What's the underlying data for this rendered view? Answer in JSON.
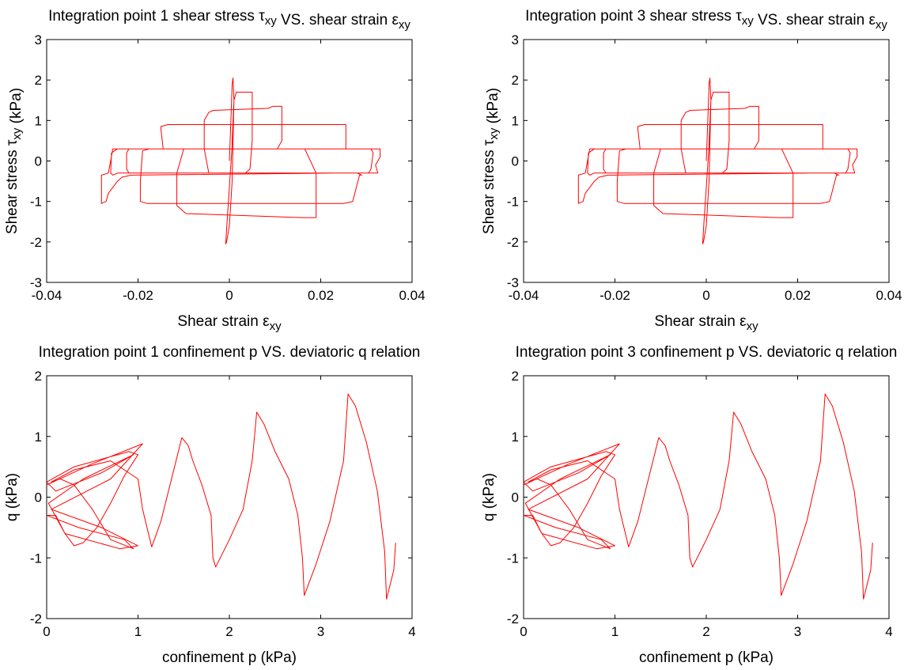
{
  "chart_data": [
    {
      "type": "line",
      "title": "Integration point 1 shear stress τxy VS. shear strain εxy",
      "xlabel": "Shear strain εxy",
      "ylabel": "Shear stress τxy (kPa)",
      "xlim": [
        -0.04,
        0.04
      ],
      "ylim": [
        -3,
        3
      ],
      "xticks": [
        -0.04,
        -0.02,
        0,
        0.02,
        0.04
      ],
      "xticklabels": [
        "-0.04",
        "-0.02",
        "0",
        "0.02",
        "0.04"
      ],
      "yticks": [
        3,
        2,
        1,
        0,
        -1,
        -2,
        -3
      ],
      "yticklabels": [
        "3",
        "2",
        "1",
        "0",
        "-1",
        "-2",
        "-3"
      ],
      "grid": false,
      "series": [
        {
          "color": "#ff0000",
          "x": [
            0,
            0.0004,
            0.0006,
            0.0008,
            0.001,
            0.0006,
            0,
            -0.0006,
            -0.0008,
            -0.0005,
            0.0005,
            0.001,
            0.0015,
            0.005,
            0.005,
            0.0045,
            0.0035,
            -0.0045,
            -0.0055,
            -0.0055,
            -0.0045,
            -0.0035,
            0.0085,
            0.0095,
            0.0115,
            0.0115,
            0.0105,
            -0.01,
            -0.0115,
            -0.0115,
            -0.0095,
            0.016,
            0.018,
            0.019,
            0.019,
            0.0165,
            -0.0145,
            -0.015,
            -0.015,
            -0.0135,
            0.02,
            0.0225,
            0.0255,
            0.0255,
            0.022,
            -0.0175,
            -0.019,
            -0.0195,
            -0.0195,
            -0.018,
            0.025,
            0.027,
            0.0285,
            0.029,
            0.028,
            0.023,
            -0.0215,
            -0.0235,
            -0.0245,
            -0.0265,
            -0.027,
            -0.028,
            -0.028,
            -0.0265,
            -0.0255,
            0.025,
            0.031,
            0.0325,
            0.033,
            0.033,
            0.032,
            0.0325,
            0.031,
            -0.0245,
            -0.0255,
            -0.026,
            -0.0258,
            -0.0245,
            -0.022,
            0.029,
            0.031,
            0.0315,
            0.031,
            0.0305,
            -0.02,
            -0.022,
            -0.0225,
            -0.0225,
            -0.022,
            0.025
          ],
          "y": [
            0,
            1.2,
            1.9,
            2.05,
            1.5,
            -0.5,
            -1.6,
            -2.0,
            -2.05,
            -1.5,
            0.2,
            1.5,
            1.7,
            1.7,
            0.5,
            -0.2,
            -0.3,
            -0.3,
            0.3,
            1.0,
            1.2,
            1.25,
            1.3,
            1.35,
            1.35,
            0.5,
            0.3,
            0.3,
            -0.3,
            -1.1,
            -1.3,
            -1.4,
            -1.4,
            -1.4,
            -0.3,
            0.3,
            0.3,
            0.8,
            0.85,
            0.9,
            0.9,
            0.9,
            0.9,
            0.3,
            0.3,
            0.3,
            0.25,
            -0.5,
            -1.0,
            -1.05,
            -1.05,
            -1.0,
            -0.35,
            -0.35,
            -0.3,
            -0.3,
            -0.35,
            -0.4,
            -0.5,
            -0.8,
            -1.0,
            -1.05,
            -0.35,
            -0.3,
            0.3,
            0.3,
            0.3,
            0.3,
            0.3,
            0.1,
            -0.1,
            -0.3,
            -0.3,
            -0.3,
            -0.35,
            -0.3,
            0.2,
            0.3,
            0.3,
            0.3,
            0.3,
            0.2,
            -0.2,
            -0.3,
            -0.3,
            -0.3,
            -0.2,
            0.2,
            0.3,
            0.3
          ]
        }
      ]
    },
    {
      "type": "line",
      "title": "Integration point 3 shear stress τxy VS. shear strain εxy",
      "xlabel": "Shear strain εxy",
      "ylabel": "Shear stress τxy (kPa)",
      "xlim": [
        -0.04,
        0.04
      ],
      "ylim": [
        -3,
        3
      ],
      "xticks": [
        -0.04,
        -0.02,
        0,
        0.02,
        0.04
      ],
      "xticklabels": [
        "-0.04",
        "-0.02",
        "0",
        "0.02",
        "0.04"
      ],
      "yticks": [
        3,
        2,
        1,
        0,
        -1,
        -2,
        -3
      ],
      "yticklabels": [
        "3",
        "2",
        "1",
        "0",
        "-1",
        "-2",
        "-3"
      ],
      "grid": false,
      "series": [
        {
          "color": "#ff0000",
          "x": [
            0,
            0.0004,
            0.0006,
            0.0008,
            0.001,
            0.0006,
            0,
            -0.0006,
            -0.0008,
            -0.0005,
            0.0005,
            0.001,
            0.0015,
            0.005,
            0.005,
            0.0045,
            0.0035,
            -0.0045,
            -0.0055,
            -0.0055,
            -0.0045,
            -0.0035,
            0.0085,
            0.0095,
            0.0115,
            0.0115,
            0.0105,
            -0.01,
            -0.0115,
            -0.0115,
            -0.0095,
            0.016,
            0.018,
            0.019,
            0.019,
            0.0165,
            -0.0145,
            -0.015,
            -0.015,
            -0.0135,
            0.02,
            0.0225,
            0.0255,
            0.0255,
            0.022,
            -0.0175,
            -0.019,
            -0.0195,
            -0.0195,
            -0.018,
            0.025,
            0.027,
            0.0285,
            0.029,
            0.028,
            0.023,
            -0.0215,
            -0.0235,
            -0.0245,
            -0.0265,
            -0.027,
            -0.028,
            -0.028,
            -0.0265,
            -0.0255,
            0.025,
            0.031,
            0.0325,
            0.033,
            0.033,
            0.032,
            0.0325,
            0.031,
            -0.0245,
            -0.0255,
            -0.026,
            -0.0258,
            -0.0245,
            -0.022,
            0.029,
            0.031,
            0.0315,
            0.031,
            0.0305,
            -0.02,
            -0.022,
            -0.0225,
            -0.0225,
            -0.022,
            0.025
          ],
          "y": [
            0,
            1.2,
            1.9,
            2.05,
            1.5,
            -0.5,
            -1.6,
            -2.0,
            -2.05,
            -1.5,
            0.2,
            1.5,
            1.7,
            1.7,
            0.5,
            -0.2,
            -0.3,
            -0.3,
            0.3,
            1.0,
            1.2,
            1.25,
            1.3,
            1.35,
            1.35,
            0.5,
            0.3,
            0.3,
            -0.3,
            -1.1,
            -1.3,
            -1.4,
            -1.4,
            -1.4,
            -0.3,
            0.3,
            0.3,
            0.8,
            0.85,
            0.9,
            0.9,
            0.9,
            0.9,
            0.3,
            0.3,
            0.3,
            0.25,
            -0.5,
            -1.0,
            -1.05,
            -1.05,
            -1.0,
            -0.35,
            -0.35,
            -0.3,
            -0.3,
            -0.35,
            -0.4,
            -0.5,
            -0.8,
            -1.0,
            -1.05,
            -0.35,
            -0.3,
            0.3,
            0.3,
            0.3,
            0.3,
            0.3,
            0.1,
            -0.1,
            -0.3,
            -0.3,
            -0.3,
            -0.35,
            -0.3,
            0.2,
            0.3,
            0.3,
            0.3,
            0.3,
            0.2,
            -0.2,
            -0.3,
            -0.3,
            -0.3,
            -0.2,
            0.2,
            0.3,
            0.3
          ]
        }
      ]
    },
    {
      "type": "line",
      "title": "Integration point 1 confinement p VS. deviatoric q relation",
      "xlabel": "confinement p (kPa)",
      "ylabel": "q (kPa)",
      "xlim": [
        0,
        4
      ],
      "ylim": [
        -2,
        2
      ],
      "xticks": [
        0,
        1,
        2,
        3,
        4
      ],
      "xticklabels": [
        "0",
        "1",
        "2",
        "3",
        "4"
      ],
      "yticks": [
        2,
        1,
        0,
        -1,
        -2
      ],
      "yticklabels": [
        "2",
        "1",
        "0",
        "-1",
        "-2"
      ],
      "grid": false,
      "series": [
        {
          "color": "#ff0000",
          "x": [
            0,
            0.5,
            1.05,
            0.7,
            0.05,
            0.6,
            1.0,
            0.8,
            0.2,
            0.02,
            0.4,
            0.95,
            0.6,
            0.1,
            0,
            0.3,
            0.9,
            1.0,
            0.85,
            0.7,
            0.55,
            0.4,
            0.3,
            0.2,
            0.1,
            0,
            0.35,
            0.85,
            0.95,
            0.7,
            0.5,
            0.3,
            0.15,
            0.05,
            0.3,
            0.7,
            1.0,
            1.05,
            1.15,
            1.25,
            1.48,
            1.55,
            1.6,
            1.7,
            1.8,
            1.82,
            1.85,
            2.0,
            2.15,
            2.25,
            2.3,
            2.38,
            2.5,
            2.65,
            2.75,
            2.8,
            2.82,
            2.95,
            3.1,
            3.25,
            3.3,
            3.38,
            3.5,
            3.62,
            3.7,
            3.72,
            3.8,
            3.82
          ],
          "y": [
            0.2,
            0.55,
            0.88,
            0.3,
            -0.2,
            -0.5,
            -0.8,
            -0.85,
            -0.6,
            -0.1,
            0.3,
            0.7,
            0.4,
            0.1,
            0.25,
            0.5,
            0.75,
            0.7,
            0.35,
            -0.1,
            -0.5,
            -0.75,
            -0.8,
            -0.6,
            -0.3,
            -0.3,
            -0.5,
            -0.7,
            -0.85,
            -0.7,
            -0.2,
            0.2,
            0.3,
            0.25,
            0.45,
            0.6,
            0.3,
            -0.2,
            -0.82,
            -0.4,
            0.98,
            0.85,
            0.6,
            0.2,
            -0.3,
            -1.0,
            -1.15,
            -0.7,
            -0.2,
            0.6,
            1.4,
            1.2,
            0.75,
            0.3,
            -0.3,
            -1.0,
            -1.62,
            -1.1,
            -0.4,
            0.6,
            1.7,
            1.5,
            0.9,
            0.1,
            -0.9,
            -1.68,
            -1.2,
            -0.75
          ]
        }
      ]
    },
    {
      "type": "line",
      "title": "Integration point 3 confinement p VS. deviatoric q relation",
      "xlabel": "confinement p (kPa)",
      "ylabel": "q (kPa)",
      "xlim": [
        0,
        4
      ],
      "ylim": [
        -2,
        2
      ],
      "xticks": [
        0,
        1,
        2,
        3,
        4
      ],
      "xticklabels": [
        "0",
        "1",
        "2",
        "3",
        "4"
      ],
      "yticks": [
        2,
        1,
        0,
        -1,
        -2
      ],
      "yticklabels": [
        "2",
        "1",
        "0",
        "-1",
        "-2"
      ],
      "grid": false,
      "series": [
        {
          "color": "#ff0000",
          "x": [
            0,
            0.5,
            1.05,
            0.7,
            0.05,
            0.6,
            1.0,
            0.8,
            0.2,
            0.02,
            0.4,
            0.95,
            0.6,
            0.1,
            0,
            0.3,
            0.9,
            1.0,
            0.85,
            0.7,
            0.55,
            0.4,
            0.3,
            0.2,
            0.1,
            0,
            0.35,
            0.85,
            0.95,
            0.7,
            0.5,
            0.3,
            0.15,
            0.05,
            0.3,
            0.7,
            1.0,
            1.05,
            1.15,
            1.25,
            1.48,
            1.55,
            1.6,
            1.7,
            1.8,
            1.82,
            1.85,
            2.0,
            2.15,
            2.25,
            2.3,
            2.38,
            2.5,
            2.65,
            2.75,
            2.8,
            2.82,
            2.95,
            3.1,
            3.25,
            3.3,
            3.38,
            3.5,
            3.62,
            3.7,
            3.72,
            3.8,
            3.82
          ],
          "y": [
            0.2,
            0.55,
            0.88,
            0.3,
            -0.2,
            -0.5,
            -0.8,
            -0.85,
            -0.6,
            -0.1,
            0.3,
            0.7,
            0.4,
            0.1,
            0.25,
            0.5,
            0.75,
            0.7,
            0.35,
            -0.1,
            -0.5,
            -0.75,
            -0.8,
            -0.6,
            -0.3,
            -0.3,
            -0.5,
            -0.7,
            -0.85,
            -0.7,
            -0.2,
            0.2,
            0.3,
            0.25,
            0.45,
            0.6,
            0.3,
            -0.2,
            -0.82,
            -0.4,
            0.98,
            0.85,
            0.6,
            0.2,
            -0.3,
            -1.0,
            -1.15,
            -0.7,
            -0.2,
            0.6,
            1.4,
            1.2,
            0.75,
            0.3,
            -0.3,
            -1.0,
            -1.62,
            -1.1,
            -0.4,
            0.6,
            1.7,
            1.5,
            0.9,
            0.1,
            -0.9,
            -1.68,
            -1.2,
            -0.75
          ]
        }
      ]
    }
  ]
}
